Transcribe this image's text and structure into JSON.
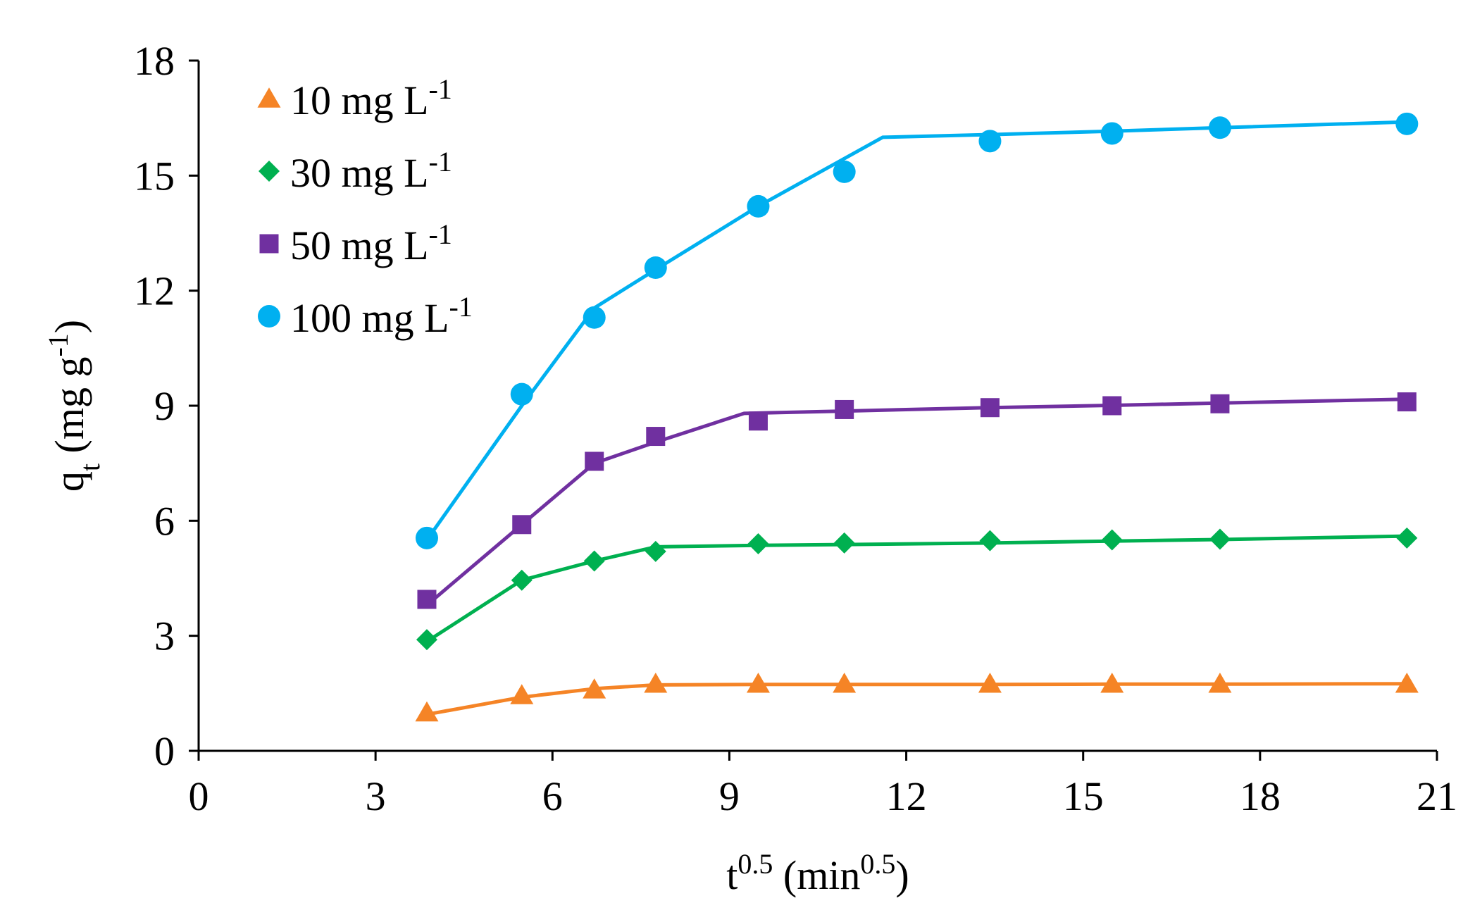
{
  "chart_data": {
    "type": "line",
    "title": "",
    "xlabel": {
      "base": "t",
      "sup": "0.5",
      "unit_open": " (min",
      "unit_sup": "0.5",
      "unit_close": ")"
    },
    "ylabel": {
      "base": "q",
      "sub": "t",
      "unit_open": " (mg g",
      "unit_sup": "-1",
      "unit_close": ")"
    },
    "xlim": [
      0,
      21
    ],
    "ylim": [
      0,
      18
    ],
    "xticks": [
      0,
      3,
      6,
      9,
      12,
      15,
      18,
      21
    ],
    "yticks": [
      0,
      3,
      6,
      9,
      12,
      15,
      18
    ],
    "grid": false,
    "legend_position": "top-left",
    "series": [
      {
        "name": "10 mg L-1",
        "label_main": "10 mg L",
        "label_sup": "-1",
        "color": "#F58426",
        "marker": "triangle",
        "points": {
          "x": [
            3.87,
            5.48,
            6.71,
            7.75,
            9.49,
            10.95,
            13.42,
            15.49,
            17.32,
            20.49
          ],
          "y": [
            1.0,
            1.45,
            1.6,
            1.75,
            1.75,
            1.75,
            1.75,
            1.75,
            1.75,
            1.75
          ]
        },
        "fit_line": {
          "x": [
            3.87,
            5.48,
            6.71,
            7.75,
            9.49,
            10.95,
            13.42,
            15.49,
            17.32,
            20.49
          ],
          "y": [
            0.95,
            1.4,
            1.62,
            1.72,
            1.73,
            1.73,
            1.73,
            1.74,
            1.74,
            1.75
          ]
        }
      },
      {
        "name": "30 mg L-1",
        "label_main": "30 mg L",
        "label_sup": "-1",
        "color": "#00B050",
        "marker": "diamond",
        "points": {
          "x": [
            3.87,
            5.48,
            6.71,
            7.75,
            9.49,
            10.95,
            13.42,
            15.49,
            17.32,
            20.49
          ],
          "y": [
            2.9,
            4.45,
            4.95,
            5.2,
            5.4,
            5.42,
            5.48,
            5.5,
            5.52,
            5.55
          ]
        },
        "fit_line": {
          "x": [
            3.87,
            5.48,
            6.71,
            7.75,
            9.49,
            10.95,
            13.42,
            15.49,
            17.32,
            20.49
          ],
          "y": [
            2.85,
            4.45,
            4.95,
            5.32,
            5.36,
            5.38,
            5.42,
            5.47,
            5.51,
            5.6
          ]
        }
      },
      {
        "name": "50 mg L-1",
        "label_main": "50 mg L",
        "label_sup": "-1",
        "color": "#7030A0",
        "marker": "square",
        "points": {
          "x": [
            3.87,
            5.48,
            6.71,
            7.75,
            9.49,
            10.95,
            13.42,
            15.49,
            17.32,
            20.49
          ],
          "y": [
            3.95,
            5.9,
            7.55,
            8.2,
            8.6,
            8.9,
            8.95,
            9.0,
            9.05,
            9.1
          ]
        },
        "fit_line": {
          "x": [
            3.87,
            5.48,
            6.71,
            7.75,
            9.25,
            10.95,
            13.42,
            15.49,
            17.32,
            20.49
          ],
          "y": [
            3.8,
            5.9,
            7.5,
            8.05,
            8.8,
            8.86,
            8.95,
            9.01,
            9.07,
            9.17
          ]
        }
      },
      {
        "name": "100 mg L-1",
        "label_main": "100 mg L",
        "label_sup": "-1",
        "color": "#00B0F0",
        "marker": "circle",
        "points": {
          "x": [
            3.87,
            5.48,
            6.71,
            7.75,
            9.49,
            10.95,
            13.42,
            15.49,
            17.32,
            20.49
          ],
          "y": [
            5.55,
            9.3,
            11.3,
            12.6,
            14.2,
            15.1,
            15.9,
            16.1,
            16.25,
            16.35
          ]
        },
        "fit_line": {
          "x": [
            3.87,
            5.48,
            6.71,
            7.75,
            9.49,
            11.6,
            13.42,
            15.49,
            17.32,
            20.49
          ],
          "y": [
            5.5,
            9.0,
            11.55,
            12.55,
            14.2,
            16.0,
            16.07,
            16.16,
            16.25,
            16.4
          ]
        }
      }
    ]
  }
}
